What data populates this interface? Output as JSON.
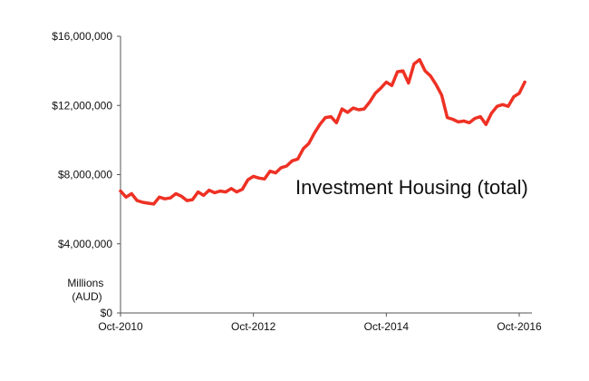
{
  "chart_data": {
    "type": "line",
    "title": "",
    "xlabel": "",
    "ylabel": "",
    "annotation": "Investment Housing (total)",
    "unit_label_lines": [
      "Millions",
      "(AUD)"
    ],
    "x_tick_labels": [
      "Oct-2010",
      "Oct-2012",
      "Oct-2014",
      "Oct-2016"
    ],
    "x_ticks": [
      "2010-10",
      "2012-10",
      "2014-10",
      "2016-10"
    ],
    "xlim": [
      "2010-10",
      "2016-11"
    ],
    "y_tick_labels": [
      "$0",
      "$4,000,000",
      "$8,000,000",
      "$12,000,000",
      "$16,000,000"
    ],
    "y_ticks": [
      0,
      4000000,
      8000000,
      12000000,
      16000000
    ],
    "ylim": [
      0,
      16000000
    ],
    "grid": false,
    "line_color": "#ee3124",
    "series": [
      {
        "x": [
          "2010-10",
          "2010-11",
          "2010-12",
          "2011-01",
          "2011-02",
          "2011-03",
          "2011-04",
          "2011-05",
          "2011-06",
          "2011-07",
          "2011-08",
          "2011-09",
          "2011-10",
          "2011-11",
          "2011-12",
          "2012-01",
          "2012-02",
          "2012-03",
          "2012-04",
          "2012-05",
          "2012-06",
          "2012-07",
          "2012-08",
          "2012-09",
          "2012-10",
          "2012-11",
          "2012-12",
          "2013-01",
          "2013-02",
          "2013-03",
          "2013-04",
          "2013-05",
          "2013-06",
          "2013-07",
          "2013-08",
          "2013-09",
          "2013-10",
          "2013-11",
          "2013-12",
          "2014-01",
          "2014-02",
          "2014-03",
          "2014-04",
          "2014-05",
          "2014-06",
          "2014-07",
          "2014-08",
          "2014-09",
          "2014-10",
          "2014-11",
          "2014-12",
          "2015-01",
          "2015-02",
          "2015-03",
          "2015-04",
          "2015-05",
          "2015-06",
          "2015-07",
          "2015-08",
          "2015-09",
          "2015-10",
          "2015-11",
          "2015-12",
          "2016-01",
          "2016-02",
          "2016-03",
          "2016-04",
          "2016-05",
          "2016-06",
          "2016-07",
          "2016-08",
          "2016-09",
          "2016-10",
          "2016-11"
        ],
        "values": [
          7050000,
          6700000,
          6900000,
          6500000,
          6400000,
          6350000,
          6300000,
          6700000,
          6600000,
          6650000,
          6900000,
          6750000,
          6500000,
          6550000,
          7000000,
          6800000,
          7100000,
          6950000,
          7050000,
          7000000,
          7200000,
          7000000,
          7150000,
          7700000,
          7900000,
          7800000,
          7750000,
          8200000,
          8100000,
          8400000,
          8500000,
          8800000,
          8900000,
          9500000,
          9800000,
          10400000,
          10900000,
          11300000,
          11350000,
          11000000,
          11800000,
          11600000,
          11850000,
          11750000,
          11800000,
          12200000,
          12700000,
          13000000,
          13350000,
          13150000,
          13950000,
          14000000,
          13300000,
          14400000,
          14650000,
          14000000,
          13700000,
          13200000,
          12600000,
          11300000,
          11200000,
          11050000,
          11100000,
          11000000,
          11250000,
          11350000,
          10900000,
          11550000,
          11950000,
          12050000,
          11950000,
          12500000,
          12700000,
          13350000
        ]
      }
    ]
  }
}
